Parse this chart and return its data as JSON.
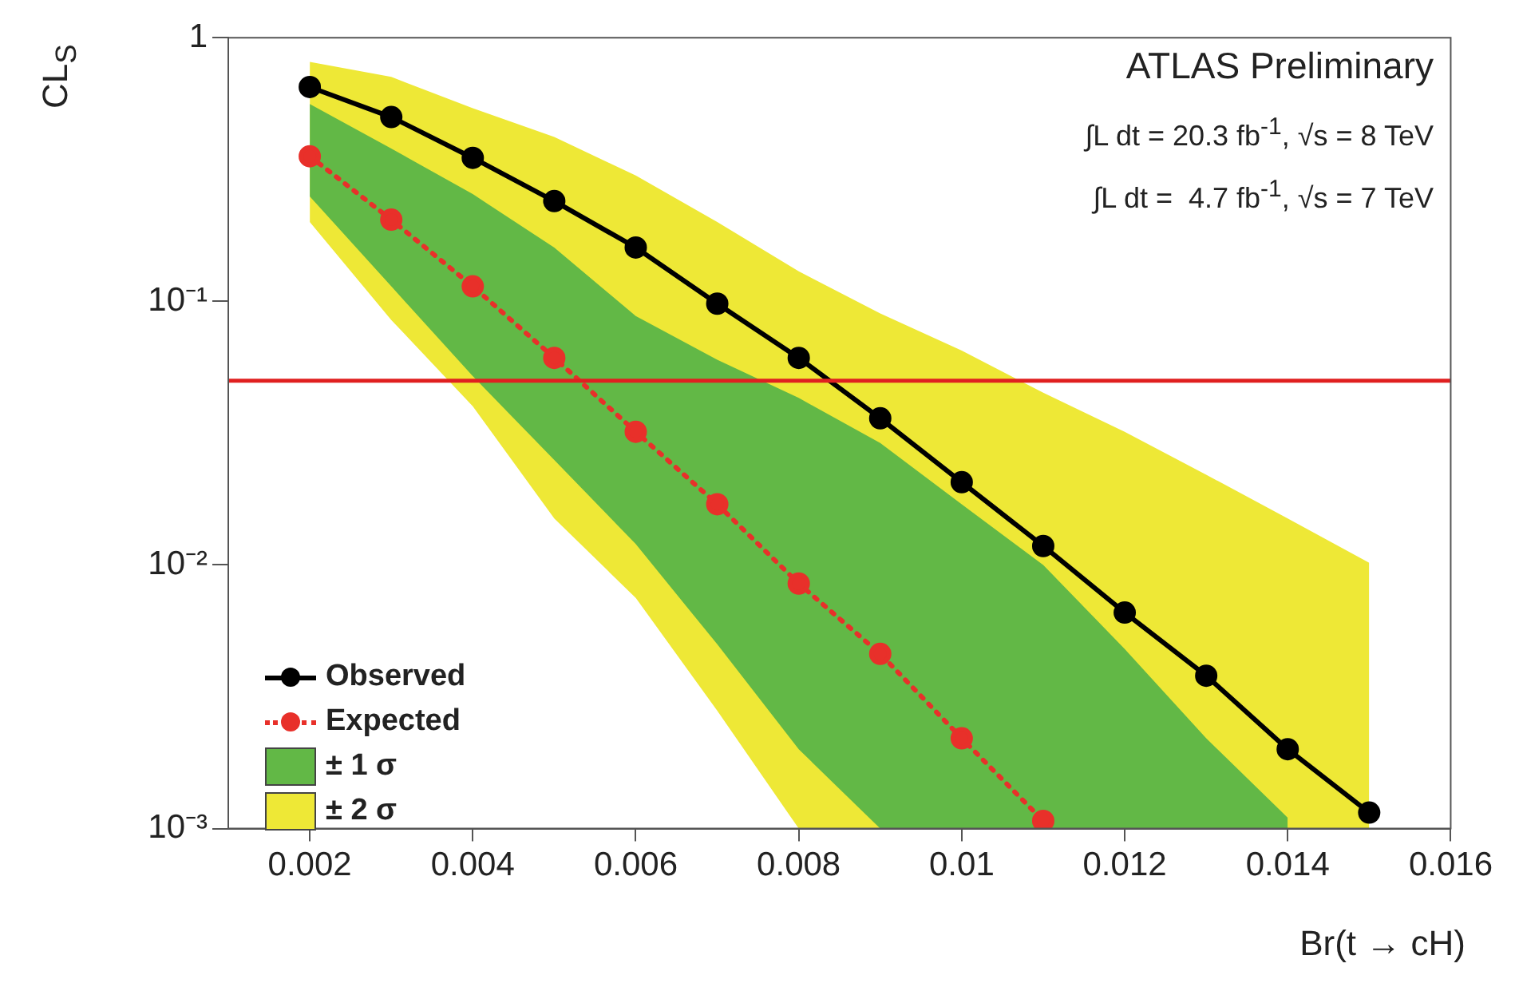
{
  "chart_data": {
    "type": "line",
    "xlabel": "Br(t → cH)",
    "ylabel": "CL$_{S}$",
    "annotations": [
      "ATLAS Preliminary",
      "∫L dt = 20.3 fb$^{-1}$, √s = 8 TeV",
      "∫L dt =  4.7 fb$^{-1}$, √s = 7 TeV"
    ],
    "x": [
      0.002,
      0.003,
      0.004,
      0.005,
      0.006,
      0.007,
      0.008,
      0.009,
      0.01,
      0.011,
      0.012,
      0.013,
      0.014,
      0.015
    ],
    "series": [
      {
        "name": "Observed",
        "type": "line",
        "color": "#000000",
        "marker": "circle",
        "line_style": "solid",
        "values": [
          0.65,
          0.5,
          0.35,
          0.24,
          0.16,
          0.098,
          0.061,
          0.036,
          0.0206,
          0.0118,
          0.0066,
          0.0038,
          0.002,
          0.00115
        ]
      },
      {
        "name": "Expected",
        "type": "line",
        "color": "#e8302a",
        "marker": "circle",
        "line_style": "dotted",
        "values": [
          0.355,
          0.204,
          0.114,
          0.061,
          0.032,
          0.017,
          0.0085,
          0.0046,
          0.0022,
          0.00107,
          null,
          null,
          null,
          null
        ]
      },
      {
        "name": "± 1 σ",
        "type": "line",
        "marker": "none",
        "line_style": "solid",
        "color": "#62b846",
        "values": [
          null,
          null,
          null,
          null,
          null,
          null,
          null,
          null,
          null,
          null,
          null,
          null,
          null,
          null
        ],
        "lower": [
          0.25,
          0.114,
          0.052,
          0.025,
          0.012,
          0.005,
          0.002,
          0.001,
          0.001,
          0.001,
          0.001,
          0.001,
          0.001,
          null
        ],
        "upper": [
          0.56,
          0.38,
          0.255,
          0.16,
          0.088,
          0.06,
          0.043,
          0.029,
          0.017,
          0.01,
          0.0048,
          0.0022,
          0.0011,
          null
        ]
      },
      {
        "name": "± 2 σ",
        "type": "line",
        "marker": "none",
        "line_style": "solid",
        "color": "#eee836",
        "values": [
          null,
          null,
          null,
          null,
          null,
          null,
          null,
          null,
          null,
          null,
          null,
          null,
          null,
          null
        ],
        "lower": [
          0.2,
          0.085,
          0.04,
          0.015,
          0.0075,
          0.0028,
          0.001,
          0.001,
          0.001,
          0.001,
          0.001,
          0.001,
          0.001,
          0.001
        ],
        "upper": [
          0.81,
          0.71,
          0.54,
          0.42,
          0.3,
          0.2,
          0.13,
          0.09,
          0.065,
          0.045,
          0.032,
          0.022,
          0.015,
          0.0102
        ]
      }
    ],
    "xlim": [
      0.001,
      0.016
    ],
    "xticks": [
      0.002,
      0.004,
      0.006,
      0.008,
      0.01,
      0.012,
      0.014,
      0.016
    ],
    "ylim": [
      0.001,
      1
    ],
    "yticks": [
      {
        "value": 0.001,
        "label": "10⁻³"
      },
      {
        "value": 0.01,
        "label": "10⁻²"
      },
      {
        "value": 0.1,
        "label": "10⁻¹"
      },
      1
    ],
    "log": "y",
    "grid": false,
    "legend": "bottom left",
    "ref_lines": [
      {
        "axis": "y",
        "value": 0.05,
        "color": "#e02020"
      }
    ]
  }
}
